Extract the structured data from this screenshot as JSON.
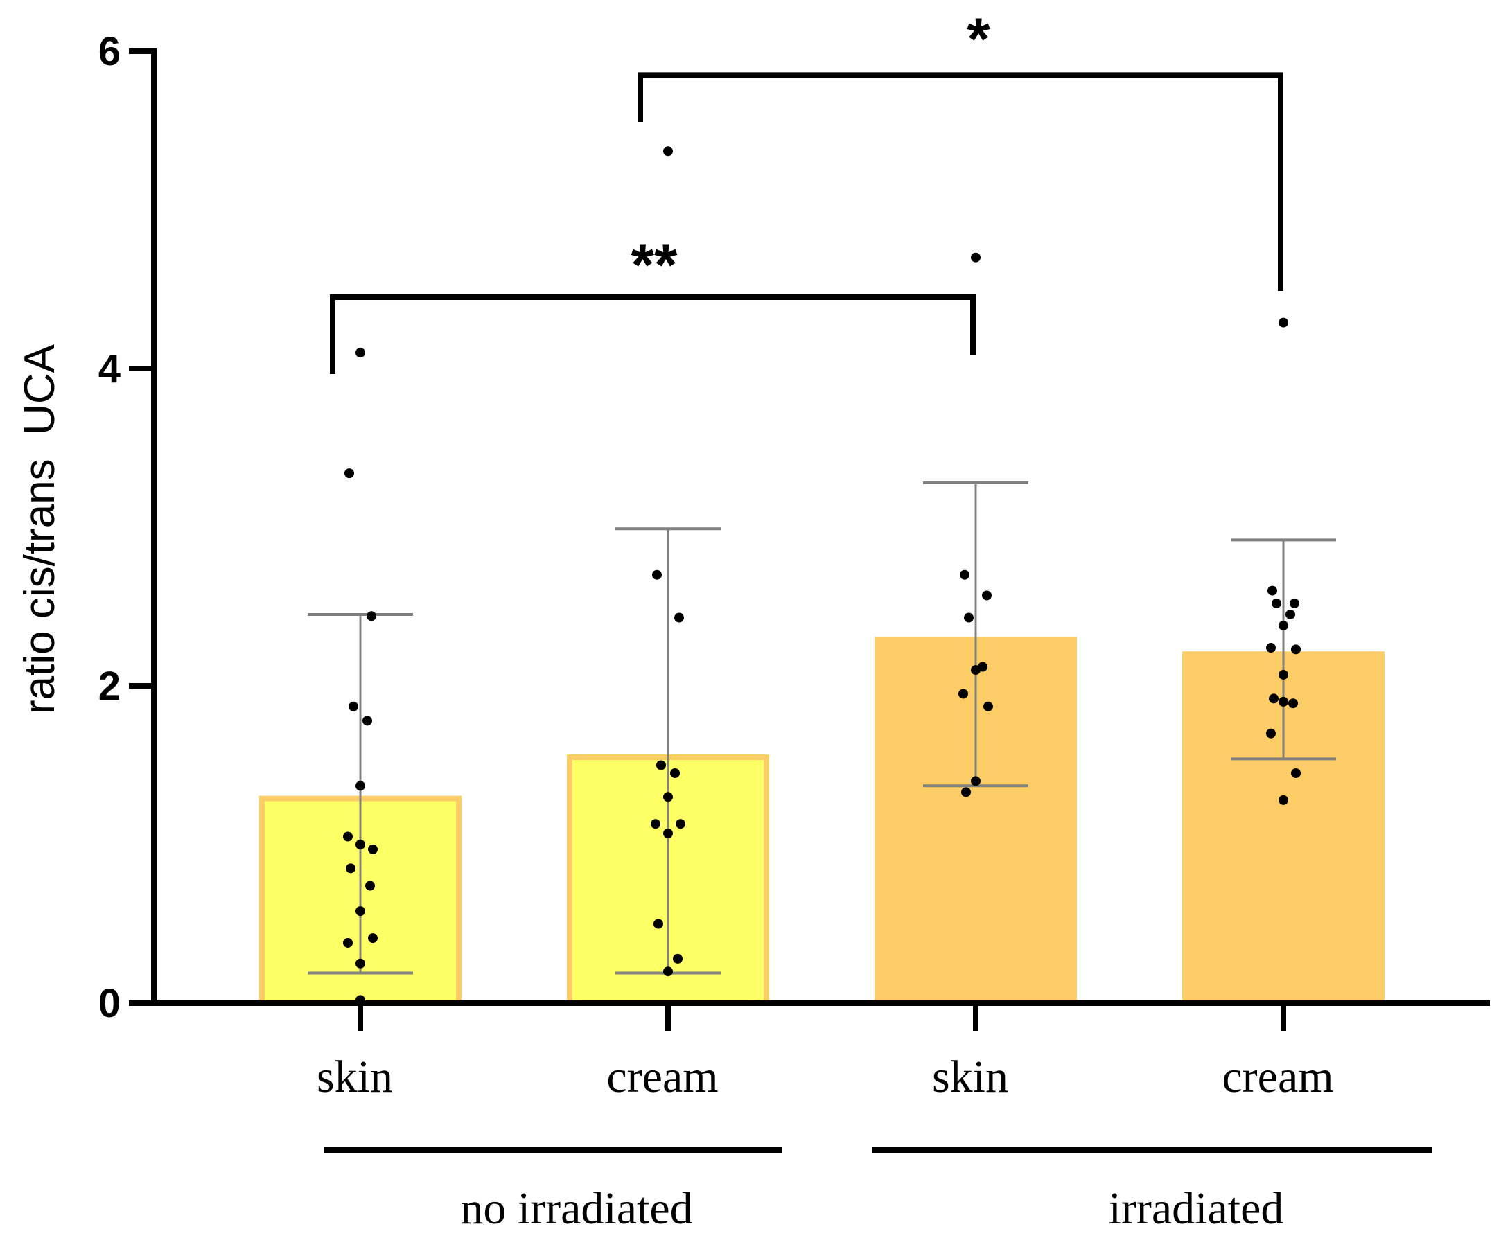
{
  "chart_data": {
    "type": "bar",
    "ylabel": "ratio cis/trans  UCA",
    "xlabel": "",
    "ylim": [
      0,
      6
    ],
    "yticks": [
      "0",
      "2",
      "4",
      "6"
    ],
    "yticks_values": [
      0,
      2,
      4,
      6
    ],
    "categories": [
      "skin",
      "cream",
      "skin",
      "cream"
    ],
    "groups": [
      {
        "label": "no irradiated",
        "categories": [
          0,
          1
        ]
      },
      {
        "label": "irradiated",
        "categories": [
          2,
          3
        ]
      }
    ],
    "values": [
      1.29,
      1.55,
      2.29,
      2.2
    ],
    "error_low": [
      0.19,
      0.19,
      1.37,
      1.54
    ],
    "error_high": [
      2.45,
      2.99,
      3.28,
      2.92
    ],
    "bar_colors": [
      "#FFFF66",
      "#FFFF66",
      "#FCCC66",
      "#FCCC66"
    ],
    "bar_edge_colors": [
      "#FCCC66",
      "#FCCC66",
      "#FCCC66",
      "#FCCC66"
    ],
    "points": [
      [
        4.1,
        3.34,
        2.44,
        1.87,
        1.78,
        1.37,
        1.05,
        0.97,
        1.0,
        0.85,
        0.74,
        0.58,
        0.38,
        0.41,
        0.25,
        0.02
      ],
      [
        5.37,
        2.7,
        2.43,
        1.5,
        1.45,
        1.3,
        1.13,
        1.13,
        1.07,
        0.5,
        0.28,
        0.2
      ],
      [
        4.7,
        2.7,
        2.57,
        2.43,
        2.12,
        2.1,
        1.95,
        1.87,
        1.4,
        1.33
      ],
      [
        4.29,
        2.6,
        2.52,
        2.52,
        2.45,
        2.38,
        2.24,
        2.23,
        2.07,
        1.92,
        1.89,
        1.9,
        1.7,
        1.45,
        1.28
      ]
    ],
    "significance": [
      {
        "label": "**",
        "from": 0,
        "to": 2,
        "y": 4.45
      },
      {
        "label": "*",
        "from": 1,
        "to": 3,
        "y": 5.85
      }
    ],
    "grid": false,
    "legend": "none"
  },
  "colors": {
    "axis": "#000000",
    "error_bar": "#808080",
    "point": "#000000"
  }
}
